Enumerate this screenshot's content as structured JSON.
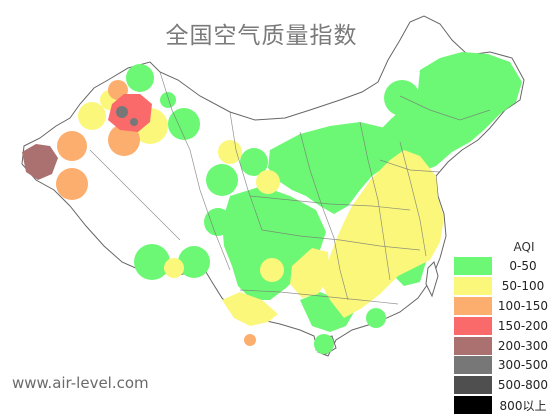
{
  "title": "全国空气质量指数",
  "watermark": "www.air-level.com",
  "legend": {
    "title": "AQI",
    "items": [
      {
        "label": "0-50",
        "color": "#6cf874"
      },
      {
        "label": "50-100",
        "color": "#fbf77b"
      },
      {
        "label": "100-150",
        "color": "#fbae6e"
      },
      {
        "label": "150-200",
        "color": "#fb6a6a"
      },
      {
        "label": "200-300",
        "color": "#ab7170"
      },
      {
        "label": "300-500",
        "color": "#777777"
      },
      {
        "label": "500-800",
        "color": "#4f4f4f"
      },
      {
        "label": "800以上",
        "color": "#000000"
      }
    ]
  },
  "colors": {
    "good": "#6cf874",
    "moderate": "#fbf77b",
    "unhealthy_sensitive": "#fbae6e",
    "unhealthy": "#fb6a6a",
    "very_unhealthy": "#ab7170",
    "hazardous": "#777777",
    "border": "#666666"
  }
}
